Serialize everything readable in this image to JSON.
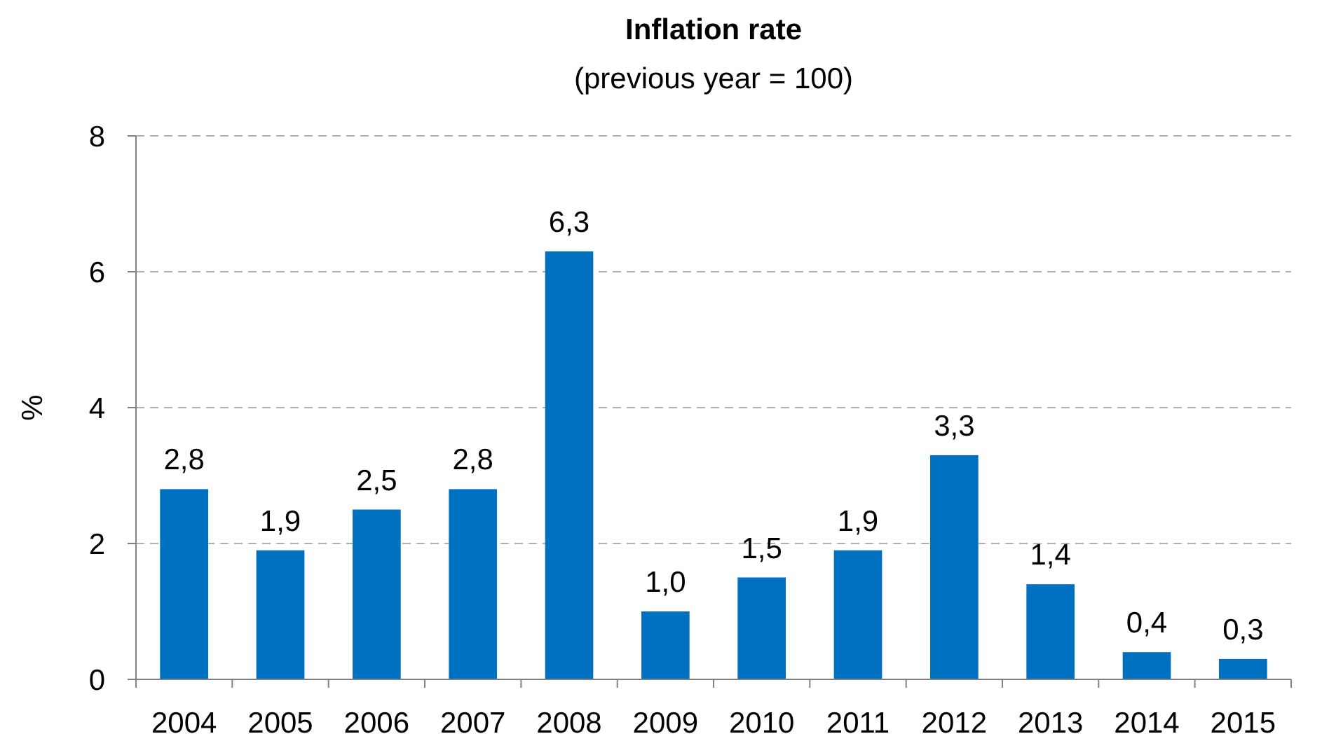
{
  "chart_data": {
    "type": "bar",
    "title": "Inflation rate",
    "subtitle": "(previous year = 100)",
    "ylabel": "%",
    "categories": [
      "2004",
      "2005",
      "2006",
      "2007",
      "2008",
      "2009",
      "2010",
      "2011",
      "2012",
      "2013",
      "2014",
      "2015"
    ],
    "values": [
      2.8,
      1.9,
      2.5,
      2.8,
      6.3,
      1.0,
      1.5,
      1.9,
      3.3,
      1.4,
      0.4,
      0.3
    ],
    "value_labels": [
      "2,8",
      "1,9",
      "2,5",
      "2,8",
      "6,3",
      "1,0",
      "1,5",
      "1,9",
      "3,3",
      "1,4",
      "0,4",
      "0,3"
    ],
    "color": "#0070c0",
    "ylim": [
      0,
      8
    ],
    "yticks": [
      0,
      2,
      4,
      6,
      8
    ],
    "grid": "y"
  }
}
